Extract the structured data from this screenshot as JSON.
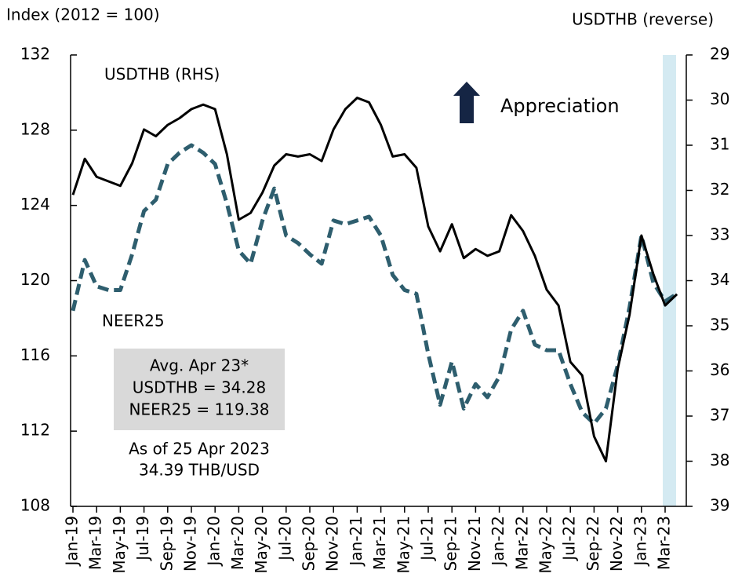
{
  "chart_data": {
    "type": "line",
    "ylabel": "Index (2012 = 100)",
    "y2label": "USDTHB (reverse)",
    "categories": [
      "Jan-19",
      null,
      "Mar-19",
      null,
      "May-19",
      null,
      "Jul-19",
      null,
      "Sep-19",
      null,
      "Nov-19",
      null,
      "Jan-20",
      null,
      "Mar-20",
      null,
      "May-20",
      null,
      "Jul-20",
      null,
      "Sep-20",
      null,
      "Nov-20",
      null,
      "Jan-21",
      null,
      "Mar-21",
      null,
      "May-21",
      null,
      "Jul-21",
      null,
      "Sep-21",
      null,
      "Nov-21",
      null,
      "Jan-22",
      null,
      "Mar-22",
      null,
      "May-22",
      null,
      "Jul-22",
      null,
      "Sep-22",
      null,
      "Nov-22",
      null,
      "Jan-23",
      null,
      "Mar-23",
      null
    ],
    "ylim": [
      108,
      132
    ],
    "yticks": [
      108,
      112,
      116,
      120,
      124,
      128,
      132
    ],
    "y2lim": [
      39,
      29
    ],
    "y2ticks": [
      39,
      38,
      37,
      36,
      35,
      34,
      33,
      32,
      31,
      30,
      29
    ],
    "series": [
      {
        "name": "NEER25",
        "color": "#2e5e6e",
        "dashed": true,
        "values": [
          118.4,
          121.1,
          119.7,
          119.5,
          119.5,
          121.4,
          123.7,
          124.3,
          126.2,
          126.8,
          127.2,
          126.8,
          126.2,
          124.1,
          121.6,
          120.9,
          123.2,
          124.9,
          122.4,
          122.0,
          121.4,
          120.9,
          123.2,
          123.0,
          123.2,
          123.4,
          122.4,
          120.3,
          119.5,
          119.3,
          116.1,
          113.4,
          115.7,
          113.2,
          114.5,
          113.8,
          114.9,
          117.4,
          118.4,
          116.6,
          116.3,
          116.3,
          114.5,
          113.0,
          112.4,
          113.2,
          115.5,
          118.6,
          122.4,
          119.9,
          118.9,
          119.3
        ]
      },
      {
        "name": "USDTHB (RHS)",
        "color": "#000000",
        "axis": "y2",
        "values": [
          32.1,
          31.3,
          31.7,
          31.8,
          31.9,
          31.4,
          30.65,
          30.8,
          30.55,
          30.4,
          30.2,
          30.1,
          30.2,
          31.2,
          32.65,
          32.5,
          32.05,
          31.45,
          31.2,
          31.25,
          31.2,
          31.35,
          30.65,
          30.2,
          29.95,
          30.05,
          30.55,
          31.25,
          31.2,
          31.5,
          32.8,
          33.35,
          32.75,
          33.5,
          33.3,
          33.45,
          33.35,
          32.55,
          32.9,
          33.45,
          34.2,
          34.55,
          35.8,
          36.1,
          37.45,
          38.0,
          35.95,
          34.75,
          33.0,
          33.85,
          34.55,
          34.3
        ]
      }
    ],
    "annotations": [
      "Appreciation",
      "Avg. Apr 23*",
      "USDTHB = 34.28",
      "NEER25 = 119.38",
      "As of 25 Apr 2023",
      "34.39 THB/USD"
    ]
  }
}
